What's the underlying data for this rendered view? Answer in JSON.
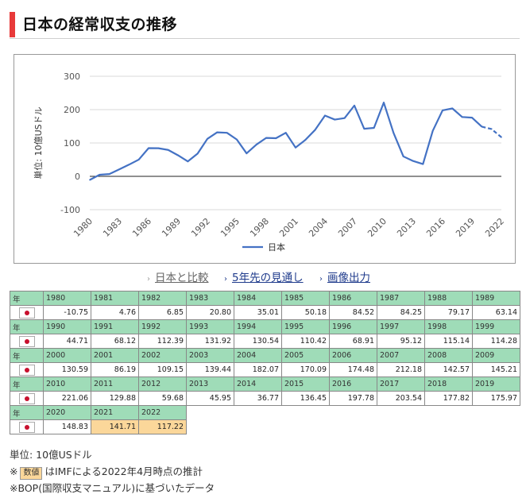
{
  "page": {
    "title": "日本の経常収支の推移",
    "links": {
      "compare": "日本と比較",
      "forecast": "5年先の見通し",
      "image_export": "画像出力"
    },
    "table": {
      "year_label": "年",
      "rows": [
        {
          "years": [
            "1980",
            "1981",
            "1982",
            "1983",
            "1984",
            "1985",
            "1986",
            "1987",
            "1988",
            "1989"
          ],
          "values": [
            "-10.75",
            "4.76",
            "6.85",
            "20.80",
            "35.01",
            "50.18",
            "84.52",
            "84.25",
            "79.17",
            "63.14"
          ]
        },
        {
          "years": [
            "1990",
            "1991",
            "1992",
            "1993",
            "1994",
            "1995",
            "1996",
            "1997",
            "1998",
            "1999"
          ],
          "values": [
            "44.71",
            "68.12",
            "112.39",
            "131.92",
            "130.54",
            "110.42",
            "68.91",
            "95.12",
            "115.14",
            "114.28"
          ]
        },
        {
          "years": [
            "2000",
            "2001",
            "2002",
            "2003",
            "2004",
            "2005",
            "2006",
            "2007",
            "2008",
            "2009"
          ],
          "values": [
            "130.59",
            "86.19",
            "109.15",
            "139.44",
            "182.07",
            "170.09",
            "174.48",
            "212.18",
            "142.57",
            "145.21"
          ]
        },
        {
          "years": [
            "2010",
            "2011",
            "2012",
            "2013",
            "2014",
            "2015",
            "2016",
            "2017",
            "2018",
            "2019"
          ],
          "values": [
            "221.06",
            "129.88",
            "59.68",
            "45.95",
            "36.77",
            "136.45",
            "197.78",
            "203.54",
            "177.82",
            "175.97"
          ]
        },
        {
          "years": [
            "2020",
            "2021",
            "2022"
          ],
          "values": [
            "148.83",
            "141.71",
            "117.22"
          ],
          "estimated_from_index": 1
        }
      ]
    },
    "notes": {
      "unit": "単位: 10億USドル",
      "estimate_prefix": "※",
      "estimate_badge": "数値",
      "estimate_text": "はIMFによる2022年4月時点の推計",
      "source": "※BOP(国際収支マニュアル)に基づいたデータ"
    },
    "colors": {
      "accent": "#e83a3a",
      "line": "#4472c4",
      "header_green": "#9fdcb8",
      "estimate_orange": "#fbd79a"
    }
  },
  "chart_data": {
    "type": "line",
    "ylabel": "単位: 10億USドル",
    "ylim": [
      -100,
      300
    ],
    "yticks": [
      -100,
      0,
      100,
      200,
      300
    ],
    "x": [
      1980,
      1981,
      1982,
      1983,
      1984,
      1985,
      1986,
      1987,
      1988,
      1989,
      1990,
      1991,
      1992,
      1993,
      1994,
      1995,
      1996,
      1997,
      1998,
      1999,
      2000,
      2001,
      2002,
      2003,
      2004,
      2005,
      2006,
      2007,
      2008,
      2009,
      2010,
      2011,
      2012,
      2013,
      2014,
      2015,
      2016,
      2017,
      2018,
      2019,
      2020,
      2021,
      2022
    ],
    "xticks": [
      "1980",
      "1983",
      "1986",
      "1989",
      "1992",
      "1995",
      "1998",
      "2001",
      "2004",
      "2007",
      "2010",
      "2013",
      "2016",
      "2019",
      "2022"
    ],
    "series": [
      {
        "name": "日本",
        "values": [
          -10.75,
          4.76,
          6.85,
          20.8,
          35.01,
          50.18,
          84.52,
          84.25,
          79.17,
          63.14,
          44.71,
          68.12,
          112.39,
          131.92,
          130.54,
          110.42,
          68.91,
          95.12,
          115.14,
          114.28,
          130.59,
          86.19,
          109.15,
          139.44,
          182.07,
          170.09,
          174.48,
          212.18,
          142.57,
          145.21,
          221.06,
          129.88,
          59.68,
          45.95,
          36.77,
          136.45,
          197.78,
          203.54,
          177.82,
          175.97,
          148.83,
          141.71,
          117.22
        ],
        "estimated_from_year": 2021
      }
    ],
    "legend": "bottom-center"
  }
}
